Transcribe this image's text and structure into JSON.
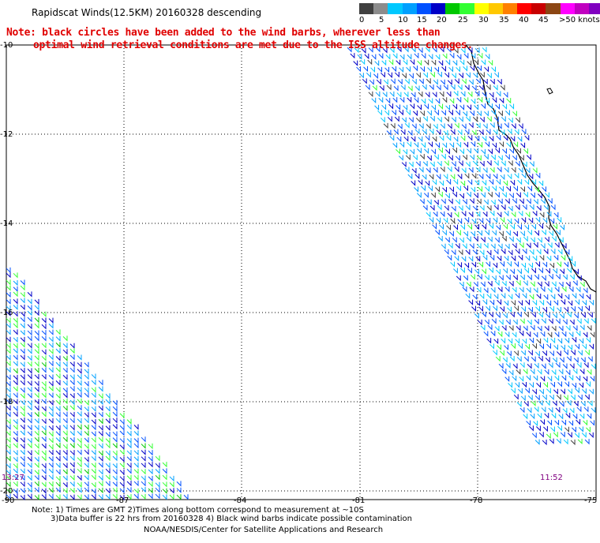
{
  "header": {
    "title": "Rapidscat Winds(12.5KM) 20160328 descending",
    "note_line1": "Note: black circles have been added to the wind barbs, wherever less than",
    "note_line2": "optimal wind retrieval conditions are met due to the ISS altitude changes."
  },
  "scale": {
    "colors": [
      "#404040",
      "#8c8c8c",
      "#00c8ff",
      "#00a0ff",
      "#0050ff",
      "#0000c8",
      "#00c800",
      "#32ff32",
      "#ffff00",
      "#ffc800",
      "#ff8000",
      "#ff0000",
      "#c80000",
      "#8b4513",
      "#ff00ff",
      "#c000c0",
      "#8000c0",
      "#400080"
    ],
    "labels": [
      "0",
      "5",
      "10",
      "15",
      "20",
      "25",
      "30",
      "35",
      "40",
      "45",
      ">50 knots"
    ]
  },
  "axes": {
    "lat_labels": [
      "-10",
      "-12",
      "-14",
      "-16",
      "-18",
      "-20"
    ],
    "lon_labels": [
      "-90",
      "-87",
      "-84",
      "-81",
      "-78",
      "-75"
    ]
  },
  "times": {
    "left": "13:27",
    "right": "11:52"
  },
  "footer": {
    "line1": "Note: 1) Times are GMT 2)Times along bottom correspond to measurement at ~10S",
    "line2": "3)Data buffer is 22 hrs from 20160328 4) Black wind barbs indicate possible contamination",
    "line3": "NOAA/NESDIS/Center for Satellite Applications and Research"
  }
}
